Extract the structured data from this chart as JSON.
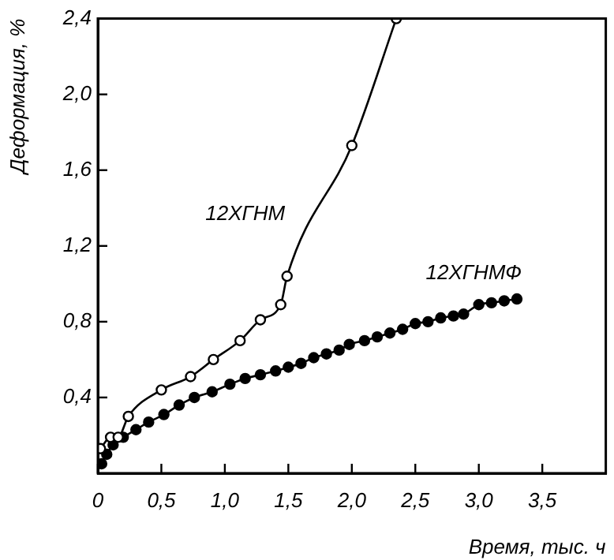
{
  "chart_data": {
    "type": "line",
    "xlabel": "Время, тыс. ч",
    "ylabel": "Деформация, %",
    "xlim": [
      0,
      4
    ],
    "xticks": [
      0,
      {
        "value": 0.5,
        "label": "0,5"
      },
      {
        "value": 1,
        "label": "1,0"
      },
      {
        "value": 1.5,
        "label": "1,5"
      },
      {
        "value": 2,
        "label": "2,0"
      },
      {
        "value": 2.5,
        "label": "2,5"
      },
      {
        "value": 3,
        "label": "3,0"
      },
      {
        "value": 3.5,
        "label": "3,5"
      }
    ],
    "ylim": [
      0,
      2.4
    ],
    "yticks": [
      {
        "value": 0.4,
        "label": "0,4"
      },
      {
        "value": 0.8,
        "label": "0,8"
      },
      {
        "value": 1.2,
        "label": "1,2"
      },
      {
        "value": 1.6,
        "label": "1,6"
      },
      {
        "value": 2,
        "label": "2,0"
      },
      {
        "value": 2.4,
        "label": "2,4"
      }
    ],
    "grid": false,
    "legend": false,
    "marker": "circle",
    "series": [
      {
        "name": "12ХГНМ",
        "color": "#000000",
        "x": [
          0.02,
          0.1,
          0.16,
          0.24,
          0.5,
          0.73,
          0.91,
          1.12,
          1.28,
          1.44,
          1.49,
          2.0,
          2.35
        ],
        "values": [
          0.13,
          0.19,
          0.19,
          0.3,
          0.44,
          0.51,
          0.6,
          0.7,
          0.81,
          0.89,
          1.04,
          1.73,
          2.4
        ]
      },
      {
        "name": "12ХГНМФ",
        "color": "#000000",
        "x": [
          0.03,
          0.07,
          0.12,
          0.2,
          0.3,
          0.4,
          0.52,
          0.64,
          0.76,
          0.9,
          1.04,
          1.16,
          1.28,
          1.4,
          1.5,
          1.6,
          1.7,
          1.8,
          1.9,
          1.98,
          2.1,
          2.2,
          2.3,
          2.4,
          2.5,
          2.6,
          2.7,
          2.8,
          2.88,
          3.0,
          3.1,
          3.2,
          3.3
        ],
        "values": [
          0.05,
          0.1,
          0.15,
          0.19,
          0.23,
          0.27,
          0.31,
          0.36,
          0.4,
          0.43,
          0.47,
          0.5,
          0.52,
          0.54,
          0.56,
          0.58,
          0.61,
          0.63,
          0.65,
          0.68,
          0.7,
          0.72,
          0.74,
          0.76,
          0.79,
          0.8,
          0.82,
          0.83,
          0.84,
          0.89,
          0.9,
          0.91,
          0.92
        ]
      }
    ]
  }
}
